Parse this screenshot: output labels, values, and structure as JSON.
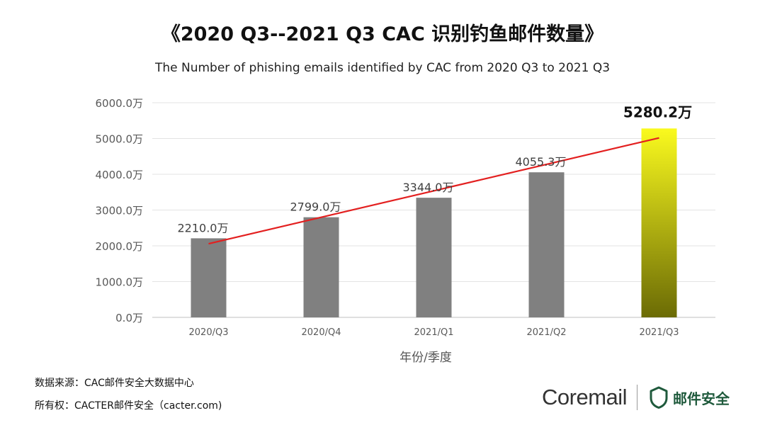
{
  "title": "《2020 Q3--2021 Q3 CAC 识别钓鱼邮件数量》",
  "subtitle": "The Number of phishing emails identified by CAC from 2020 Q3 to 2021 Q3",
  "chart_data": {
    "type": "bar",
    "categories": [
      "2020/Q3",
      "2020/Q4",
      "2021/Q1",
      "2021/Q2",
      "2021/Q3"
    ],
    "values": [
      2210.0,
      2799.0,
      3344.0,
      4055.3,
      5280.2
    ],
    "data_labels": [
      "2210.0万",
      "2799.0万",
      "3344.0万",
      "4055.3万",
      "5280.2万"
    ],
    "y_ticks": [
      0,
      1000,
      2000,
      3000,
      4000,
      5000,
      6000
    ],
    "y_tick_labels": [
      "0.0万",
      "1000.0万",
      "2000.0万",
      "3000.0万",
      "4000.0万",
      "5000.0万",
      "6000.0万"
    ],
    "ylim": [
      0,
      6000
    ],
    "xlabel": "年份/季度",
    "ylabel": "",
    "grid": true,
    "bar_color": "#808080",
    "highlight_index": 4,
    "highlight_gradient": [
      "#fafa1e",
      "#6b6b05"
    ],
    "trendline": {
      "type": "linear",
      "color": "#e32020"
    }
  },
  "footer": {
    "source": "数据来源：CAC邮件安全大数据中心",
    "copyright": "所有权：CACTER邮件安全（cacter.com)"
  },
  "brand": {
    "logo_text": "Coremail",
    "badge_text": "邮件安全",
    "icon": "shield-icon",
    "color": "#1f5a3c"
  }
}
